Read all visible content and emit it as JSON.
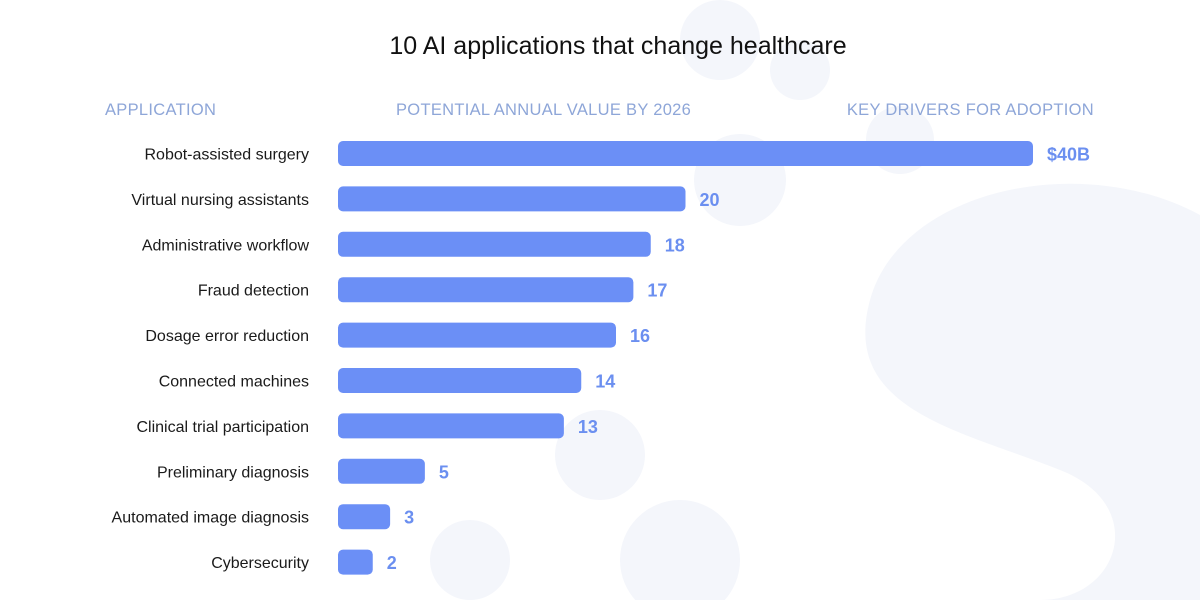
{
  "title": "10 AI applications that change healthcare",
  "headers": {
    "application": "APPLICATION",
    "value": "POTENTIAL ANNUAL VALUE BY 2026",
    "drivers": "KEY DRIVERS FOR ADOPTION"
  },
  "colors": {
    "bar": "#6b8ff6",
    "value_label": "#6b8ff0",
    "header": "#8ea6d8",
    "decoration": "#f4f6fb"
  },
  "chart_data": {
    "type": "bar",
    "orientation": "horizontal",
    "title": "10 AI applications that change healthcare",
    "categories": [
      "Robot-assisted surgery",
      "Virtual nursing assistants",
      "Administrative workflow",
      "Fraud detection",
      "Dosage error reduction",
      "Connected machines",
      "Clinical trial participation",
      "Preliminary diagnosis",
      "Automated image diagnosis",
      "Cybersecurity"
    ],
    "values": [
      40,
      20,
      18,
      17,
      16,
      14,
      13,
      5,
      3,
      2
    ],
    "value_labels": [
      "$40B",
      "20",
      "18",
      "17",
      "16",
      "14",
      "13",
      "5",
      "3",
      "2"
    ],
    "unit": "$B",
    "xlim": [
      0,
      40
    ],
    "grid": false,
    "legend": "none"
  }
}
